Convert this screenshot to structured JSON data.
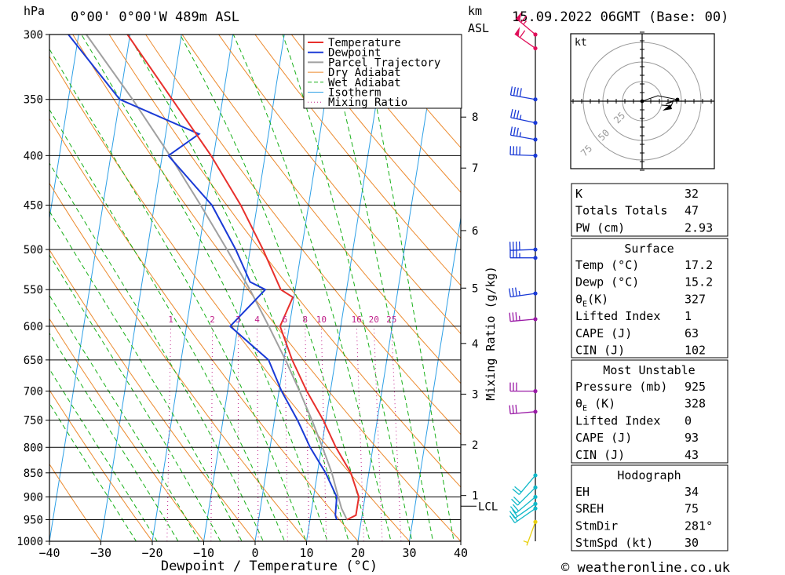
{
  "header": {
    "hpa_label": "hPa",
    "location": "0°00' 0°00'W  489m  ASL",
    "km_label": "km",
    "asl_label": "ASL",
    "datetime": "15.09.2022  06GMT  (Base: 00)"
  },
  "footer": {
    "credit": "© weatheronline.co.uk"
  },
  "hodograph": {
    "unit": "kt",
    "ring_labels": [
      "25",
      "50",
      "75"
    ],
    "points": [
      [
        0,
        0
      ],
      [
        20,
        7
      ],
      [
        45,
        2
      ],
      [
        30,
        -4
      ],
      [
        40,
        1
      ],
      [
        37,
        -6
      ],
      [
        25,
        -5
      ]
    ]
  },
  "indices": [
    {
      "label": "K",
      "value": "32"
    },
    {
      "label": "Totals Totals",
      "value": "47"
    },
    {
      "label": "PW (cm)",
      "value": "2.93"
    }
  ],
  "surface": {
    "title": "Surface",
    "rows": [
      {
        "label": "Temp (°C)",
        "value": "17.2"
      },
      {
        "label": "Dewp (°C)",
        "value": "15.2"
      },
      {
        "label": "θE(K)",
        "value": "327"
      },
      {
        "label": "Lifted Index",
        "value": "1"
      },
      {
        "label": "CAPE (J)",
        "value": "63"
      },
      {
        "label": "CIN (J)",
        "value": "102"
      }
    ]
  },
  "most_unstable": {
    "title": "Most Unstable",
    "rows": [
      {
        "label": "Pressure (mb)",
        "value": "925"
      },
      {
        "label": "θE (K)",
        "value": "328"
      },
      {
        "label": "Lifted Index",
        "value": "0"
      },
      {
        "label": "CAPE (J)",
        "value": "93"
      },
      {
        "label": "CIN (J)",
        "value": "43"
      }
    ]
  },
  "hodo_table": {
    "title": "Hodograph",
    "rows": [
      {
        "label": "EH",
        "value": "34"
      },
      {
        "label": "SREH",
        "value": "75"
      },
      {
        "label": "StmDir",
        "value": "281°"
      },
      {
        "label": "StmSpd (kt)",
        "value": "30"
      }
    ]
  },
  "chart_data": {
    "type": "line",
    "title": "Skew-T log-P sounding",
    "xlabel": "Dewpoint / Temperature (°C)",
    "ylabel": "hPa",
    "right_axis_label": "Mixing Ratio (g/kg)",
    "xlim": [
      -40,
      40
    ],
    "ylim": [
      1000,
      300
    ],
    "x_ticks": [
      -40,
      -30,
      -20,
      -10,
      0,
      10,
      20,
      30,
      40
    ],
    "pressure_levels": [
      300,
      350,
      400,
      450,
      500,
      550,
      600,
      650,
      700,
      750,
      800,
      850,
      900,
      950,
      1000
    ],
    "km_ticks": [
      {
        "label": "8",
        "p": 365
      },
      {
        "label": "7",
        "p": 412
      },
      {
        "label": "6",
        "p": 478
      },
      {
        "label": "5",
        "p": 548
      },
      {
        "label": "4",
        "p": 625
      },
      {
        "label": "3",
        "p": 705
      },
      {
        "label": "2",
        "p": 795
      },
      {
        "label": "1",
        "p": 897
      }
    ],
    "lcl": {
      "label": "LCL",
      "p": 920
    },
    "mixing_ratio_labels": [
      "1",
      "2",
      "3",
      "4",
      "6",
      "8",
      "10",
      "16",
      "20",
      "25"
    ],
    "legend": [
      "Temperature",
      "Dewpoint",
      "Parcel Trajectory",
      "Dry Adiabat",
      "Wet Adiabat",
      "Isotherm",
      "Mixing Ratio"
    ],
    "colors": {
      "temperature": "#e8302c",
      "dewpoint": "#1a3ad6",
      "parcel": "#a0a0a0",
      "dry_adiabat": "#ec8a2e",
      "wet_adiabat": "#18b018",
      "isotherm": "#2ea0e6",
      "mixing_ratio": "#c0208a"
    },
    "series": [
      {
        "name": "Temperature",
        "points": [
          [
            950,
            17.2
          ],
          [
            940,
            18.8
          ],
          [
            900,
            18.8
          ],
          [
            850,
            16.5
          ],
          [
            800,
            12.8
          ],
          [
            750,
            9.5
          ],
          [
            700,
            5.4
          ],
          [
            650,
            1.6
          ],
          [
            600,
            -1.8
          ],
          [
            560,
            -0.2
          ],
          [
            550,
            -2.8
          ],
          [
            500,
            -7.5
          ],
          [
            450,
            -13.2
          ],
          [
            400,
            -20.5
          ],
          [
            350,
            -29.8
          ],
          [
            300,
            -40.5
          ]
        ]
      },
      {
        "name": "Dewpoint",
        "points": [
          [
            950,
            15.2
          ],
          [
            940,
            14.8
          ],
          [
            900,
            14.5
          ],
          [
            850,
            11.6
          ],
          [
            800,
            7.8
          ],
          [
            750,
            4.5
          ],
          [
            700,
            0.5
          ],
          [
            650,
            -3.0
          ],
          [
            600,
            -11.5
          ],
          [
            550,
            -5.8
          ],
          [
            540,
            -9.0
          ],
          [
            500,
            -12.8
          ],
          [
            450,
            -18.8
          ],
          [
            400,
            -28.8
          ],
          [
            380,
            -23.5
          ],
          [
            350,
            -40.0
          ],
          [
            300,
            -52.0
          ]
        ]
      },
      {
        "name": "Parcel Trajectory",
        "points": [
          [
            950,
            17.2
          ],
          [
            925,
            15.8
          ],
          [
            900,
            14.8
          ],
          [
            850,
            12.8
          ],
          [
            800,
            10.2
          ],
          [
            750,
            7.3
          ],
          [
            700,
            4.0
          ],
          [
            650,
            0.3
          ],
          [
            600,
            -4.0
          ],
          [
            550,
            -8.8
          ],
          [
            500,
            -14.5
          ],
          [
            450,
            -21.0
          ],
          [
            400,
            -28.5
          ],
          [
            350,
            -37.5
          ],
          [
            300,
            -48.5
          ]
        ]
      }
    ],
    "wind_barbs": [
      {
        "p": 300,
        "dir": 310,
        "kt": 65
      },
      {
        "p": 310,
        "dir": 305,
        "kt": 60
      },
      {
        "p": 350,
        "dir": 280,
        "kt": 40
      },
      {
        "p": 370,
        "dir": 282,
        "kt": 35
      },
      {
        "p": 385,
        "dir": 280,
        "kt": 35
      },
      {
        "p": 400,
        "dir": 272,
        "kt": 40
      },
      {
        "p": 500,
        "dir": 268,
        "kt": 40
      },
      {
        "p": 510,
        "dir": 270,
        "kt": 35
      },
      {
        "p": 555,
        "dir": 262,
        "kt": 35
      },
      {
        "p": 590,
        "dir": 265,
        "kt": 35
      },
      {
        "p": 700,
        "dir": 270,
        "kt": 30
      },
      {
        "p": 735,
        "dir": 265,
        "kt": 30
      },
      {
        "p": 855,
        "dir": 220,
        "kt": 20
      },
      {
        "p": 880,
        "dir": 225,
        "kt": 20
      },
      {
        "p": 900,
        "dir": 230,
        "kt": 20
      },
      {
        "p": 915,
        "dir": 235,
        "kt": 20
      },
      {
        "p": 925,
        "dir": 235,
        "kt": 20
      },
      {
        "p": 955,
        "dir": 200,
        "kt": 5
      }
    ]
  }
}
